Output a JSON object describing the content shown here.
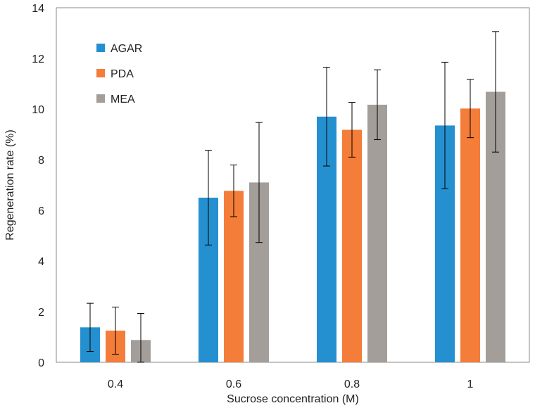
{
  "chart_data": {
    "type": "bar",
    "title": "",
    "xlabel": "Sucrose concentration (M)",
    "ylabel": "Regeneration rate (%)",
    "categories": [
      "0.4",
      "0.6",
      "0.8",
      "1"
    ],
    "ylim": [
      0,
      14
    ],
    "yticks": [
      0,
      2,
      4,
      6,
      8,
      10,
      12,
      14
    ],
    "grid": false,
    "legend_position": "top-left",
    "series": [
      {
        "name": "AGAR",
        "color": "#2490cf",
        "values": [
          1.38,
          6.5,
          9.7,
          9.35
        ],
        "errors": [
          0.95,
          1.87,
          1.95,
          2.5
        ]
      },
      {
        "name": "PDA",
        "color": "#f47d3a",
        "values": [
          1.25,
          6.77,
          9.18,
          10.02
        ],
        "errors": [
          0.93,
          1.02,
          1.08,
          1.15
        ]
      },
      {
        "name": "MEA",
        "color": "#a39e9a",
        "values": [
          0.88,
          7.1,
          10.17,
          10.68
        ],
        "errors": [
          1.05,
          2.37,
          1.38,
          2.38
        ]
      }
    ]
  }
}
